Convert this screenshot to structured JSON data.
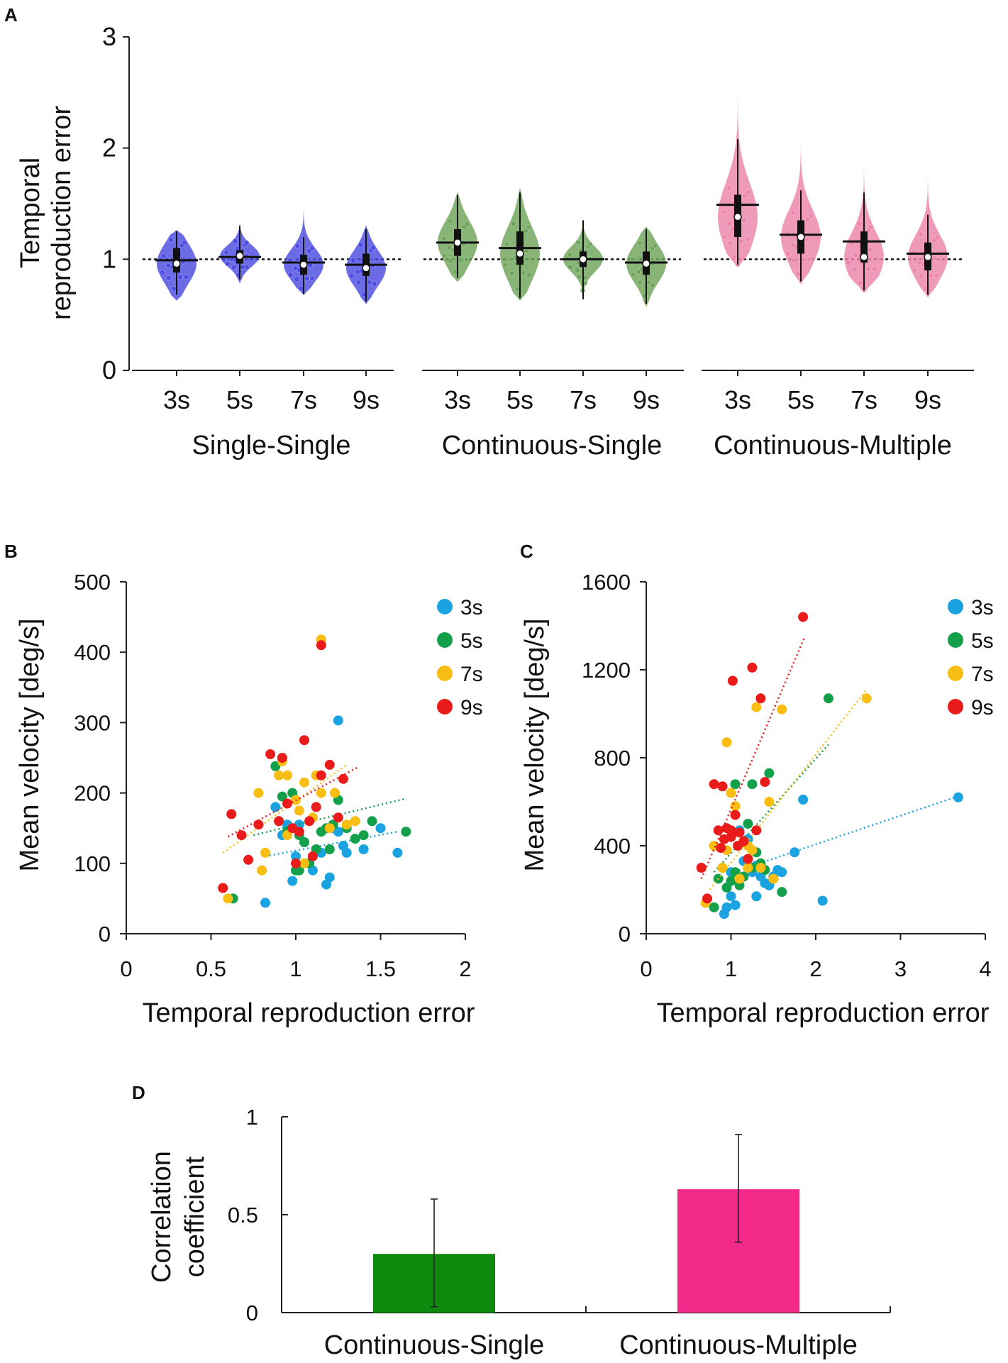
{
  "colors": {
    "single_single": "#4a4ae0",
    "continuous_single": "#6fa35a",
    "continuous_multiple": "#ec84a8",
    "s3": "#1aa3e0",
    "s5": "#14a04a",
    "s7": "#f8be14",
    "s9": "#ea1b1b",
    "bar_cs": "#0d8a0d",
    "bar_cm": "#f42a8a"
  },
  "chart_data": [
    {
      "panel": "A",
      "type": "violin",
      "ylabel_lines": [
        "Temporal",
        "reproduction error"
      ],
      "ylim": [
        0,
        3
      ],
      "yticks": [
        "0",
        "1",
        "2",
        "3"
      ],
      "reference_line": 1,
      "groups": [
        {
          "name": "Single-Single",
          "color_key": "single_single",
          "conditions": [
            {
              "label": "3s",
              "median": 0.96,
              "mean": 0.99,
              "q1": 0.88,
              "q3": 1.1,
              "whisker_low": 0.68,
              "whisker_high": 1.25,
              "min": 0.63,
              "max": 1.26
            },
            {
              "label": "5s",
              "median": 1.03,
              "mean": 1.02,
              "q1": 0.96,
              "q3": 1.08,
              "whisker_low": 0.82,
              "whisker_high": 1.3,
              "min": 0.78,
              "max": 1.33
            },
            {
              "label": "7s",
              "median": 0.95,
              "mean": 0.97,
              "q1": 0.86,
              "q3": 1.04,
              "whisker_low": 0.69,
              "whisker_high": 1.2,
              "min": 0.68,
              "max": 1.5
            },
            {
              "label": "9s",
              "median": 0.92,
              "mean": 0.95,
              "q1": 0.85,
              "q3": 1.05,
              "whisker_low": 0.62,
              "whisker_high": 1.27,
              "min": 0.6,
              "max": 1.3
            }
          ]
        },
        {
          "name": "Continuous-Single",
          "color_key": "continuous_single",
          "conditions": [
            {
              "label": "3s",
              "median": 1.15,
              "mean": 1.15,
              "q1": 1.03,
              "q3": 1.27,
              "whisker_low": 0.83,
              "whisker_high": 1.58,
              "min": 0.8,
              "max": 1.6
            },
            {
              "label": "5s",
              "median": 1.05,
              "mean": 1.1,
              "q1": 0.95,
              "q3": 1.25,
              "whisker_low": 0.65,
              "whisker_high": 1.6,
              "min": 0.63,
              "max": 1.64
            },
            {
              "label": "7s",
              "median": 1.0,
              "mean": 1.0,
              "q1": 0.93,
              "q3": 1.07,
              "whisker_low": 0.64,
              "whisker_high": 1.35,
              "min": 0.61,
              "max": 1.37
            },
            {
              "label": "9s",
              "median": 0.96,
              "mean": 0.97,
              "q1": 0.86,
              "q3": 1.07,
              "whisker_low": 0.6,
              "whisker_high": 1.27,
              "min": 0.57,
              "max": 1.29
            }
          ]
        },
        {
          "name": "Continuous-Multiple",
          "color_key": "continuous_multiple",
          "conditions": [
            {
              "label": "3s",
              "median": 1.38,
              "mean": 1.49,
              "q1": 1.2,
              "q3": 1.58,
              "whisker_low": 0.95,
              "whisker_high": 2.08,
              "min": 0.93,
              "max": 2.6
            },
            {
              "label": "5s",
              "median": 1.2,
              "mean": 1.22,
              "q1": 1.05,
              "q3": 1.35,
              "whisker_low": 0.8,
              "whisker_high": 1.62,
              "min": 0.78,
              "max": 2.17
            },
            {
              "label": "7s",
              "median": 1.02,
              "mean": 1.16,
              "q1": 0.97,
              "q3": 1.25,
              "whisker_low": 0.72,
              "whisker_high": 1.6,
              "min": 0.7,
              "max": 2.62
            },
            {
              "label": "9s",
              "median": 1.02,
              "mean": 1.05,
              "q1": 0.9,
              "q3": 1.15,
              "whisker_low": 0.68,
              "whisker_high": 1.4,
              "min": 0.66,
              "max": 1.87
            }
          ]
        }
      ]
    },
    {
      "panel": "B",
      "type": "scatter",
      "xlabel": "Temporal reproduction error",
      "ylabel": "Mean velocity [deg/s]",
      "xlim": [
        0,
        2
      ],
      "ylim": [
        0,
        500
      ],
      "xticks": [
        "0",
        "0.5",
        "1",
        "1.5",
        "2"
      ],
      "yticks": [
        "0",
        "100",
        "200",
        "300",
        "400",
        "500"
      ],
      "legend": [
        "3s",
        "5s",
        "7s",
        "9s"
      ],
      "series": [
        {
          "name": "3s",
          "color_key": "s3",
          "x": [
            0.82,
            0.88,
            0.92,
            0.98,
            1.0,
            1.02,
            1.05,
            1.1,
            1.15,
            1.2,
            1.22,
            1.25,
            1.28,
            1.3,
            1.35,
            1.4,
            1.5,
            1.6,
            0.95,
            1.18,
            1.25
          ],
          "y": [
            44,
            180,
            140,
            75,
            110,
            155,
            130,
            90,
            115,
            80,
            150,
            145,
            125,
            115,
            160,
            120,
            150,
            115,
            155,
            70,
            303
          ],
          "trend": [
            [
              0.82,
              110
            ],
            [
              1.6,
              145
            ]
          ]
        },
        {
          "name": "5s",
          "color_key": "s5",
          "x": [
            0.63,
            0.88,
            0.9,
            0.92,
            0.95,
            0.98,
            1.0,
            1.02,
            1.05,
            1.08,
            1.12,
            1.15,
            1.18,
            1.2,
            1.22,
            1.25,
            1.3,
            1.35,
            1.4,
            1.45,
            1.65,
            1.02
          ],
          "y": [
            50,
            238,
            160,
            195,
            145,
            200,
            90,
            140,
            130,
            100,
            120,
            145,
            150,
            120,
            155,
            190,
            150,
            135,
            140,
            160,
            145,
            90
          ],
          "trend": [
            [
              0.75,
              140
            ],
            [
              1.65,
              192
            ]
          ]
        },
        {
          "name": "7s",
          "color_key": "s7",
          "x": [
            0.6,
            0.78,
            0.8,
            0.82,
            0.9,
            0.92,
            0.95,
            1.0,
            1.02,
            1.05,
            1.1,
            1.12,
            1.15,
            1.2,
            1.23,
            1.3,
            1.35,
            1.15,
            0.95,
            1.05
          ],
          "y": [
            50,
            200,
            90,
            115,
            225,
            245,
            140,
            190,
            175,
            215,
            165,
            225,
            200,
            150,
            200,
            155,
            160,
            418,
            225,
            100
          ],
          "trend": [
            [
              0.57,
              115
            ],
            [
              1.3,
              240
            ]
          ]
        },
        {
          "name": "9s",
          "color_key": "s9",
          "x": [
            0.57,
            0.62,
            0.68,
            0.72,
            0.78,
            0.85,
            0.9,
            0.92,
            0.95,
            0.98,
            1.0,
            1.02,
            1.05,
            1.08,
            1.12,
            1.15,
            1.2,
            1.25,
            1.28,
            1.15,
            1.1
          ],
          "y": [
            65,
            170,
            140,
            105,
            155,
            255,
            160,
            250,
            185,
            150,
            100,
            145,
            275,
            160,
            180,
            225,
            240,
            165,
            220,
            410,
            110
          ],
          "trend": [
            [
              0.6,
              138
            ],
            [
              1.37,
              237
            ]
          ]
        }
      ]
    },
    {
      "panel": "C",
      "type": "scatter",
      "xlabel": "Temporal reproduction error",
      "ylabel": "Mean velocity [deg/s]",
      "xlim": [
        0,
        4
      ],
      "ylim": [
        0,
        1600
      ],
      "xticks": [
        "0",
        "1",
        "2",
        "3",
        "4"
      ],
      "yticks": [
        "0",
        "400",
        "800",
        "1200",
        "1600"
      ],
      "legend": [
        "3s",
        "5s",
        "7s",
        "9s"
      ],
      "series": [
        {
          "name": "3s",
          "color_key": "s3",
          "x": [
            0.92,
            0.95,
            1.0,
            1.05,
            1.1,
            1.15,
            1.2,
            1.25,
            1.3,
            1.35,
            1.4,
            1.45,
            1.5,
            1.55,
            1.6,
            1.75,
            1.85,
            2.08,
            3.68,
            1.0,
            1.3
          ],
          "y": [
            90,
            120,
            170,
            130,
            470,
            330,
            430,
            280,
            170,
            260,
            230,
            220,
            260,
            290,
            280,
            370,
            610,
            150,
            620,
            280,
            310
          ],
          "trend": [
            [
              0.95,
              270
            ],
            [
              3.68,
              625
            ]
          ]
        },
        {
          "name": "5s",
          "color_key": "s5",
          "x": [
            0.8,
            0.85,
            0.9,
            0.95,
            1.0,
            1.05,
            1.1,
            1.15,
            1.2,
            1.25,
            1.3,
            1.35,
            1.4,
            1.45,
            1.5,
            1.6,
            2.15,
            1.05,
            1.25,
            1.35
          ],
          "y": [
            120,
            250,
            300,
            210,
            240,
            680,
            220,
            260,
            500,
            300,
            370,
            320,
            290,
            730,
            250,
            190,
            1070,
            280,
            680,
            300
          ],
          "trend": [
            [
              0.8,
              280
            ],
            [
              2.15,
              860
            ]
          ]
        },
        {
          "name": "7s",
          "color_key": "s7",
          "x": [
            0.7,
            0.8,
            0.9,
            0.95,
            1.0,
            1.05,
            1.1,
            1.15,
            1.2,
            1.25,
            1.3,
            1.35,
            1.45,
            1.5,
            1.6,
            2.6,
            0.95,
            1.2
          ],
          "y": [
            140,
            400,
            300,
            870,
            640,
            580,
            250,
            420,
            300,
            380,
            1030,
            300,
            600,
            250,
            1020,
            1070,
            380,
            400
          ],
          "trend": [
            [
              0.75,
              200
            ],
            [
              2.6,
              1110
            ]
          ]
        },
        {
          "name": "9s",
          "color_key": "s9",
          "x": [
            0.65,
            0.72,
            0.8,
            0.85,
            0.88,
            0.9,
            0.95,
            1.0,
            1.02,
            1.05,
            1.08,
            1.1,
            1.15,
            1.2,
            1.25,
            1.3,
            1.35,
            1.4,
            1.85,
            0.92,
            1.0
          ],
          "y": [
            300,
            160,
            680,
            470,
            390,
            670,
            480,
            440,
            1150,
            540,
            400,
            460,
            420,
            340,
            1210,
            470,
            1070,
            690,
            1440,
            430,
            470
          ],
          "trend": [
            [
              0.65,
              250
            ],
            [
              1.87,
              1350
            ]
          ]
        }
      ]
    },
    {
      "panel": "D",
      "type": "bar",
      "ylabel_lines": [
        "Correlation",
        "coefficient"
      ],
      "ylim": [
        0,
        1
      ],
      "yticks": [
        "0",
        "0.5",
        "1"
      ],
      "categories": [
        "Continuous-Single",
        "Continuous-Multiple"
      ],
      "values": [
        0.3,
        0.63
      ],
      "errors": [
        [
          0.03,
          0.58
        ],
        [
          0.36,
          0.91
        ]
      ],
      "color_keys": [
        "bar_cs",
        "bar_cm"
      ]
    }
  ]
}
